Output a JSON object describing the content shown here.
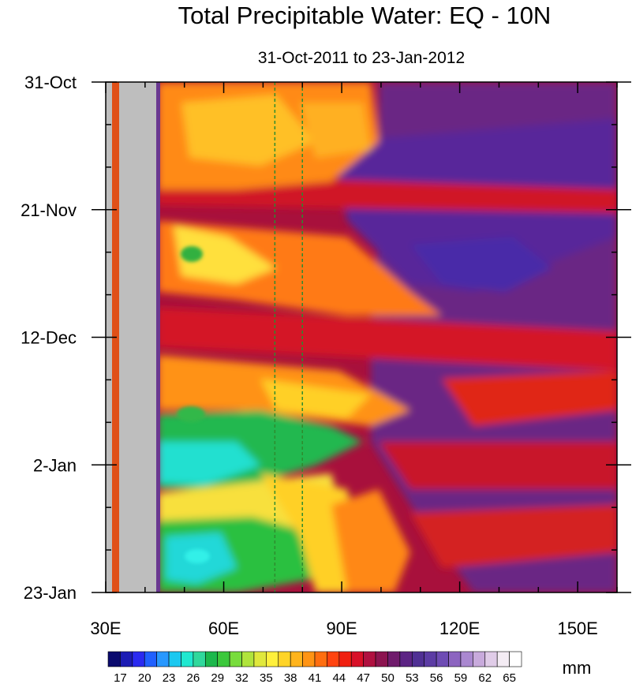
{
  "chart_data": {
    "type": "heatmap",
    "title": "Total Precipitable Water: EQ - 10N",
    "subtitle": "31-Oct-2011 to 23-Jan-2012",
    "xlabel": "",
    "ylabel": "",
    "x_ticks": [
      {
        "value": 30,
        "label": "30E"
      },
      {
        "value": 60,
        "label": "60E"
      },
      {
        "value": 90,
        "label": "90E"
      },
      {
        "value": 120,
        "label": "120E"
      },
      {
        "value": 150,
        "label": "150E"
      }
    ],
    "xlim": [
      30,
      160
    ],
    "x_minor_step": 10,
    "y_ticks": [
      {
        "value": 0,
        "label": "31-Oct"
      },
      {
        "value": 21,
        "label": "21-Nov"
      },
      {
        "value": 42,
        "label": "12-Dec"
      },
      {
        "value": 63,
        "label": "2-Jan"
      },
      {
        "value": 84,
        "label": "23-Jan"
      }
    ],
    "ylim_days": [
      0,
      84
    ],
    "y_minor_step": 7,
    "y_direction": "time increases downward",
    "missing_data_band_lon": [
      33,
      43
    ],
    "missing_data_color": "#BEBEBE",
    "reference_lines_lon": [
      73,
      80
    ],
    "reference_line_color": "#2E8B2E",
    "colorbar": {
      "unit": "mm",
      "tick_labels": [
        "17",
        "20",
        "23",
        "26",
        "29",
        "32",
        "35",
        "38",
        "41",
        "44",
        "47",
        "50",
        "53",
        "56",
        "59",
        "62",
        "65"
      ],
      "colors": [
        "#0A0A6E",
        "#1C1CB4",
        "#2A2AF0",
        "#2060FF",
        "#2898FF",
        "#1CC8F0",
        "#20E8D0",
        "#30D89C",
        "#1CB84C",
        "#3CC83C",
        "#78DC3C",
        "#B0E43C",
        "#E0E83C",
        "#FFF03C",
        "#FFD428",
        "#FFB41C",
        "#FF9414",
        "#FF6E10",
        "#FF4410",
        "#F02010",
        "#D81028",
        "#B01040",
        "#8C1450",
        "#701C6C",
        "#5C2484",
        "#503094",
        "#5C3CA4",
        "#6E4CB4",
        "#8C64C0",
        "#AA88D0",
        "#C8AADC",
        "#E0CCE8",
        "#F4ECF4",
        "#FFFFFF"
      ]
    },
    "description_features": [
      {
        "region": "30-43E",
        "note": "missing data (grey)"
      },
      {
        "region": "44-95E, Oct-Dec",
        "values_mm": "41-53 (yellow/orange/red)"
      },
      {
        "region": "44-95E, late Dec-Jan",
        "values_mm": "29-38 (green/cyan)"
      },
      {
        "region": "95-160E",
        "values_mm": "53-62 (red/purple)"
      }
    ]
  }
}
